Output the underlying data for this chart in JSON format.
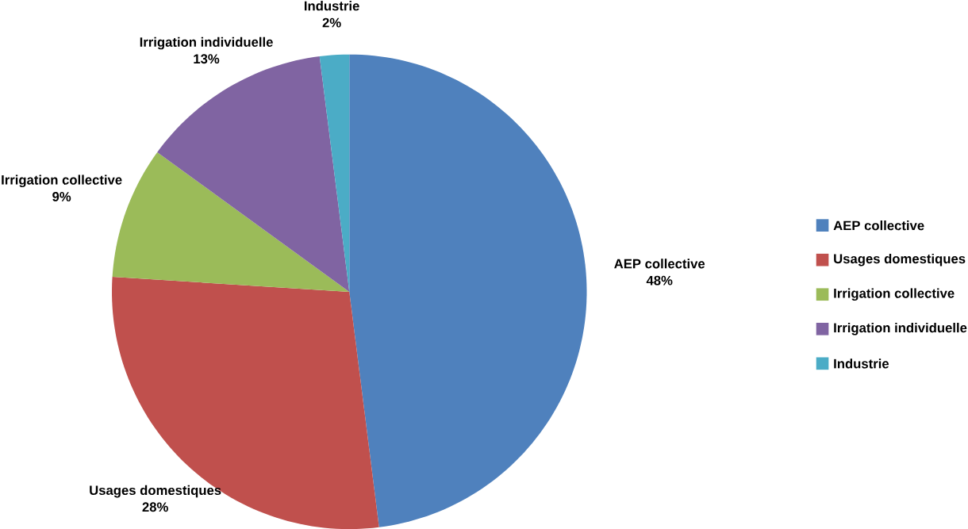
{
  "chart_data": {
    "type": "pie",
    "categories": [
      "AEP collective",
      "Usages domestiques",
      "Irrigation collective",
      "Irrigation individuelle",
      "Industrie"
    ],
    "values": [
      48,
      28,
      9,
      13,
      2
    ],
    "value_labels": [
      "48%",
      "28%",
      "9%",
      "13%",
      "2%"
    ],
    "colors": [
      "#4f81bd",
      "#c0504d",
      "#9bbb59",
      "#8064a2",
      "#4bacc6"
    ],
    "legend": "right"
  }
}
